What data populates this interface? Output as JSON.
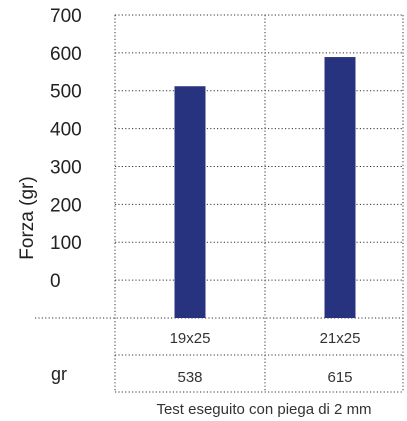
{
  "chart_data": {
    "type": "bar",
    "ylabel": "Forza (gr)",
    "ylim": [
      0,
      700
    ],
    "yticks": [
      0,
      100,
      200,
      300,
      400,
      500,
      600,
      700
    ],
    "categories": [
      "19x25",
      "21x25"
    ],
    "values": [
      538,
      615
    ],
    "grid": true,
    "bar_color": "#283380",
    "table": {
      "row_label": "gr",
      "values": [
        "538",
        "615"
      ]
    },
    "footnote": "Test eseguito con piega di 2 mm"
  }
}
